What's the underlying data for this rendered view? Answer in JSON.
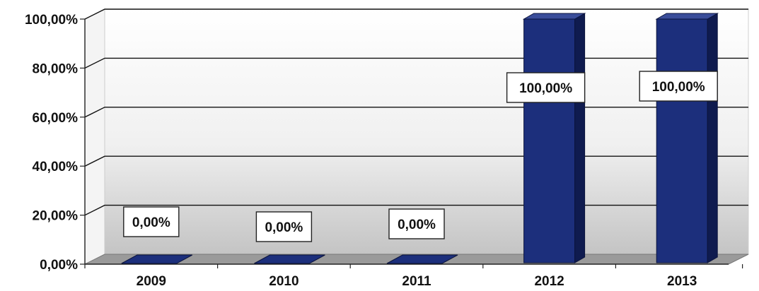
{
  "chart_data": {
    "type": "bar",
    "categories": [
      "2009",
      "2010",
      "2011",
      "2012",
      "2013"
    ],
    "series": [
      {
        "values": [
          0,
          0,
          0,
          100,
          100
        ]
      }
    ],
    "data_labels": [
      "0,00%",
      "0,00%",
      "0,00%",
      "100,00%",
      "100,00%"
    ],
    "y_ticks": [
      "0,00%",
      "20,00%",
      "40,00%",
      "60,00%",
      "80,00%",
      "100,00%"
    ],
    "ylim": [
      0,
      100
    ],
    "title": "",
    "xlabel": "",
    "ylabel": "",
    "grid": true,
    "three_d": true,
    "legend": "none",
    "colors": {
      "bar_front": "#1c2f7c",
      "bar_side": "#0f1b4f",
      "bar_top": "#3a4d9a",
      "floor": "#9a9a9a",
      "wall_top": "#ffffff",
      "wall_bottom": "#c9c9c9"
    }
  }
}
